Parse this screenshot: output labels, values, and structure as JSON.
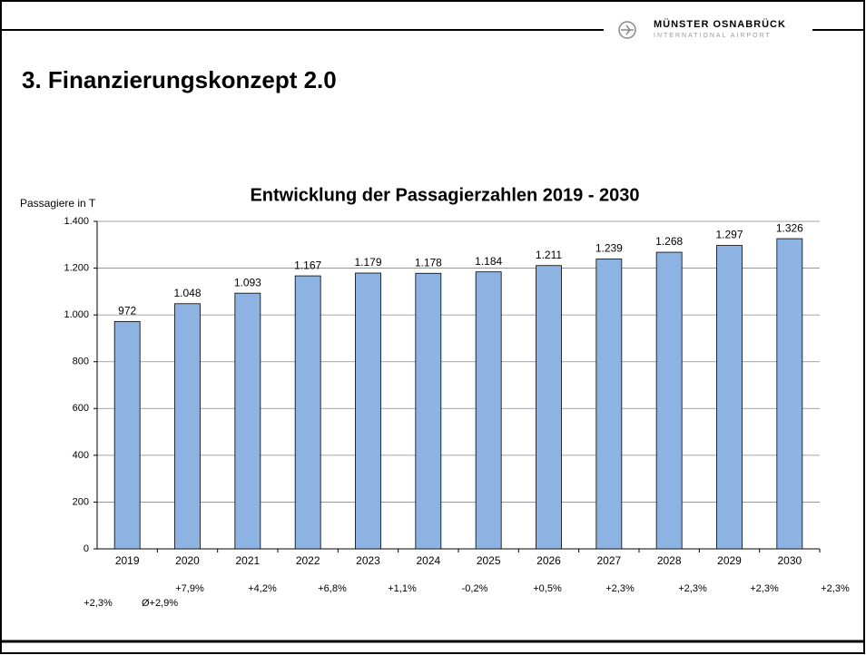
{
  "slide_title": "3. Finanzierungskonzept 2.0",
  "logo": {
    "name": "MÜNSTER OSNABRÜCK",
    "subtitle": "INTERNATIONAL AIRPORT"
  },
  "chart_data": {
    "type": "bar",
    "title": "Entwicklung der Passagierzahlen 2019 - 2030",
    "y_label": "Passagiere in T",
    "categories": [
      "2019",
      "2020",
      "2021",
      "2022",
      "2023",
      "2024",
      "2025",
      "2026",
      "2027",
      "2028",
      "2029",
      "2030"
    ],
    "values": [
      972,
      1048,
      1093,
      1167,
      1179,
      1178,
      1184,
      1211,
      1239,
      1268,
      1297,
      1326
    ],
    "value_labels": [
      "972",
      "1.048",
      "1.093",
      "1.167",
      "1.179",
      "1.178",
      "1.184",
      "1.211",
      "1.239",
      "1.268",
      "1.297",
      "1.326"
    ],
    "color": "#8db3e2",
    "ylim": [
      0,
      1400
    ],
    "yticks": [
      0,
      200,
      400,
      600,
      800,
      {
        "value": 1000,
        "label": "1.000"
      },
      {
        "value": 1200,
        "label": "1.200"
      },
      {
        "value": 1400,
        "label": "1.400"
      }
    ],
    "grid": true,
    "annotations": [
      "+7,9%",
      "+4,2%",
      "+6,8%",
      "+1,1%",
      "-0,2%",
      "+0,5%",
      "+2,3%",
      "+2,3%",
      "+2,3%",
      "+2,3%",
      "+2,3%",
      "Ø+2,9%"
    ]
  }
}
